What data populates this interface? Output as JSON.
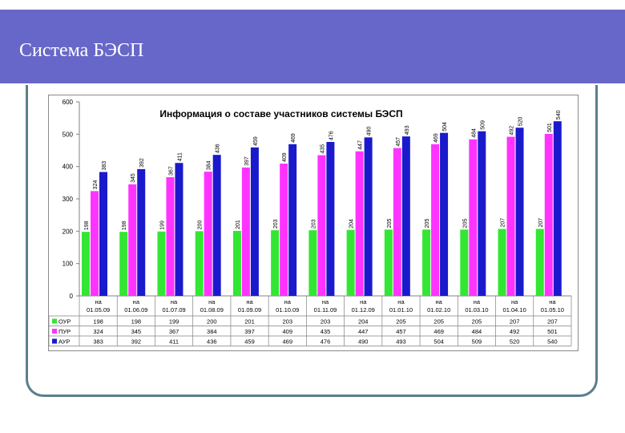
{
  "slide": {
    "title": "Система БЭСП"
  },
  "chart_data": {
    "type": "bar",
    "title": "Информация о составе участников системы БЭСП",
    "ylim": [
      0,
      600
    ],
    "yticks": [
      0,
      100,
      200,
      300,
      400,
      500,
      600
    ],
    "grid": false,
    "categories": [
      [
        "на",
        "01.05.09"
      ],
      [
        "на",
        "01.06.09"
      ],
      [
        "на",
        "01.07.09"
      ],
      [
        "на",
        "01.08.09"
      ],
      [
        "на",
        "01.09.09"
      ],
      [
        "на",
        "01.10.09"
      ],
      [
        "на",
        "01.11.09"
      ],
      [
        "на",
        "01.12.09"
      ],
      [
        "на",
        "01.01.10"
      ],
      [
        "на",
        "01.02.10"
      ],
      [
        "на",
        "01.03.10"
      ],
      [
        "на",
        "01.04.10"
      ],
      [
        "на",
        "01.05.10"
      ]
    ],
    "series": [
      {
        "name": "ОУР",
        "color": "#33e633",
        "values": [
          198,
          198,
          199,
          200,
          201,
          203,
          203,
          204,
          205,
          205,
          205,
          207,
          207
        ]
      },
      {
        "name": "ПУР",
        "color": "#ff33ff",
        "values": [
          324,
          345,
          367,
          384,
          397,
          409,
          435,
          447,
          457,
          469,
          484,
          492,
          501
        ]
      },
      {
        "name": "АУР",
        "color": "#1a1acc",
        "values": [
          383,
          392,
          411,
          436,
          459,
          469,
          476,
          490,
          493,
          504,
          509,
          520,
          540
        ]
      }
    ]
  }
}
